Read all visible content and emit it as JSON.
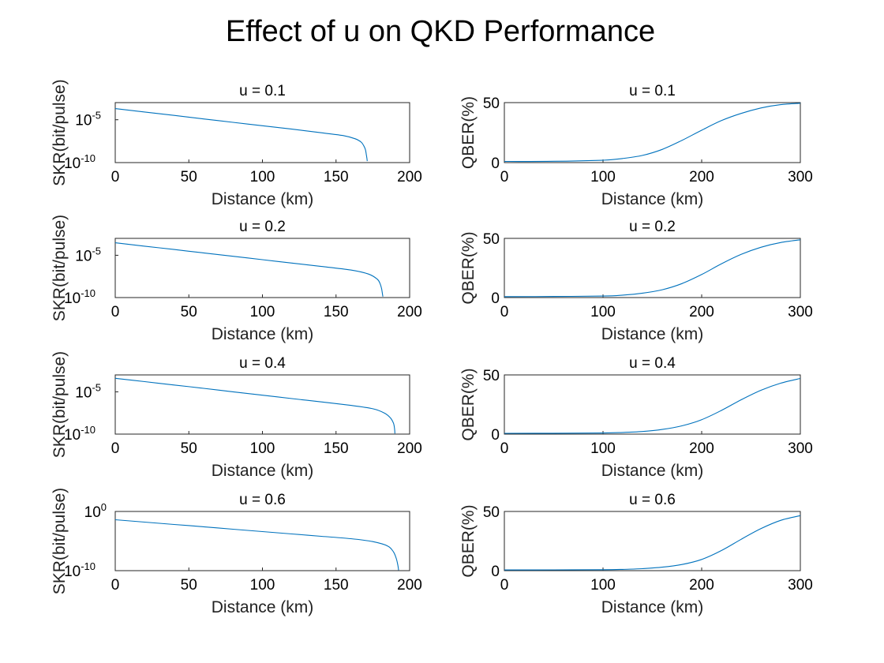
{
  "figure_title": "Effect of u on QKD Performance",
  "chart_data": [
    {
      "type": "line",
      "title": "u = 0.1",
      "xlabel": "Distance (km)",
      "ylabel": "SKR(bit/pulse)",
      "y_scale": "log",
      "xlim": [
        0,
        200
      ],
      "ylim": [
        1e-10,
        0.001
      ],
      "xticks": [
        {
          "v": 0,
          "t": "0"
        },
        {
          "v": 50,
          "t": "50"
        },
        {
          "v": 100,
          "t": "100"
        },
        {
          "v": 150,
          "t": "150"
        },
        {
          "v": 200,
          "t": "200"
        }
      ],
      "yticks": [
        {
          "v": 1e-10,
          "base": "10",
          "exp": "-10"
        },
        {
          "v": 1e-05,
          "base": "10",
          "exp": "-5"
        }
      ],
      "x": [
        0,
        20,
        40,
        60,
        80,
        100,
        120,
        140,
        155,
        163,
        167,
        169,
        170,
        170.5,
        171,
        171.2
      ],
      "y": [
        0.0002,
        8e-05,
        3.2e-05,
        1.25e-05,
        5e-06,
        2e-06,
        8e-07,
        3e-07,
        1.4e-07,
        6e-08,
        2.5e-08,
        8e-09,
        3e-09,
        1e-09,
        3e-10,
        1.5e-10
      ]
    },
    {
      "type": "line",
      "title": "u = 0.1",
      "xlabel": "Distance (km)",
      "ylabel": "QBER(%)",
      "xlim": [
        0,
        300
      ],
      "ylim": [
        0,
        50
      ],
      "xticks": [
        {
          "v": 0,
          "t": "0"
        },
        {
          "v": 100,
          "t": "100"
        },
        {
          "v": 200,
          "t": "200"
        },
        {
          "v": 300,
          "t": "300"
        }
      ],
      "yticks": [
        {
          "v": 0,
          "t": "0"
        },
        {
          "v": 50,
          "t": "50"
        }
      ],
      "x": [
        0,
        50,
        100,
        120,
        140,
        160,
        180,
        200,
        220,
        240,
        260,
        280,
        300
      ],
      "y": [
        1,
        1.1,
        2,
        3.4,
        6,
        11,
        18.5,
        27,
        35,
        41,
        45.5,
        48.3,
        49.5
      ]
    },
    {
      "type": "line",
      "title": "u = 0.2",
      "xlabel": "Distance (km)",
      "ylabel": "SKR(bit/pulse)",
      "y_scale": "log",
      "xlim": [
        0,
        200
      ],
      "ylim": [
        1e-10,
        0.001
      ],
      "xticks": [
        {
          "v": 0,
          "t": "0"
        },
        {
          "v": 50,
          "t": "50"
        },
        {
          "v": 100,
          "t": "100"
        },
        {
          "v": 150,
          "t": "150"
        },
        {
          "v": 200,
          "t": "200"
        }
      ],
      "yticks": [
        {
          "v": 1e-10,
          "base": "10",
          "exp": "-10"
        },
        {
          "v": 1e-05,
          "base": "10",
          "exp": "-5"
        }
      ],
      "x": [
        0,
        20,
        40,
        60,
        80,
        100,
        120,
        140,
        160,
        172,
        178,
        180,
        181,
        181.5,
        181.8
      ],
      "y": [
        0.0003,
        0.00012,
        4.8e-05,
        1.9e-05,
        7.6e-06,
        3e-06,
        1.2e-06,
        4.8e-07,
        1.8e-07,
        6e-08,
        1.5e-08,
        4e-09,
        1e-09,
        3e-10,
        1.3e-10
      ]
    },
    {
      "type": "line",
      "title": "u = 0.2",
      "xlabel": "Distance (km)",
      "ylabel": "QBER(%)",
      "xlim": [
        0,
        300
      ],
      "ylim": [
        0,
        50
      ],
      "xticks": [
        {
          "v": 0,
          "t": "0"
        },
        {
          "v": 100,
          "t": "100"
        },
        {
          "v": 200,
          "t": "200"
        },
        {
          "v": 300,
          "t": "300"
        }
      ],
      "yticks": [
        {
          "v": 0,
          "t": "0"
        },
        {
          "v": 50,
          "t": "50"
        }
      ],
      "x": [
        0,
        50,
        100,
        120,
        140,
        160,
        180,
        200,
        220,
        240,
        260,
        280,
        300
      ],
      "y": [
        0.8,
        0.9,
        1.3,
        2.1,
        3.7,
        6.6,
        11.8,
        19.5,
        28.5,
        36.5,
        42.5,
        46.5,
        48.8
      ]
    },
    {
      "type": "line",
      "title": "u = 0.4",
      "xlabel": "Distance (km)",
      "ylabel": "SKR(bit/pulse)",
      "y_scale": "log",
      "xlim": [
        0,
        200
      ],
      "ylim": [
        1e-10,
        0.001
      ],
      "xticks": [
        {
          "v": 0,
          "t": "0"
        },
        {
          "v": 50,
          "t": "50"
        },
        {
          "v": 100,
          "t": "100"
        },
        {
          "v": 150,
          "t": "150"
        },
        {
          "v": 200,
          "t": "200"
        }
      ],
      "yticks": [
        {
          "v": 1e-10,
          "base": "10",
          "exp": "-10"
        },
        {
          "v": 1e-05,
          "base": "10",
          "exp": "-5"
        }
      ],
      "x": [
        0,
        20,
        40,
        60,
        80,
        100,
        120,
        140,
        160,
        175,
        183,
        187,
        189,
        189.7,
        190
      ],
      "y": [
        0.0004,
        0.00016,
        6.4e-05,
        2.6e-05,
        1e-05,
        4e-06,
        1.6e-06,
        6.4e-07,
        2.5e-07,
        1e-07,
        3e-08,
        8e-09,
        2e-09,
        5e-10,
        1.2e-10
      ]
    },
    {
      "type": "line",
      "title": "u = 0.4",
      "xlabel": "Distance (km)",
      "ylabel": "QBER(%)",
      "xlim": [
        0,
        300
      ],
      "ylim": [
        0,
        50
      ],
      "xticks": [
        {
          "v": 0,
          "t": "0"
        },
        {
          "v": 100,
          "t": "100"
        },
        {
          "v": 200,
          "t": "200"
        },
        {
          "v": 300,
          "t": "300"
        }
      ],
      "yticks": [
        {
          "v": 0,
          "t": "0"
        },
        {
          "v": 50,
          "t": "50"
        }
      ],
      "x": [
        0,
        50,
        100,
        120,
        140,
        160,
        180,
        200,
        220,
        240,
        260,
        280,
        300
      ],
      "y": [
        0.7,
        0.75,
        0.95,
        1.4,
        2.2,
        3.9,
        7,
        12.2,
        20,
        29,
        37,
        43,
        47
      ]
    },
    {
      "type": "line",
      "title": "u = 0.6",
      "xlabel": "Distance (km)",
      "ylabel": "SKR(bit/pulse)",
      "y_scale": "log",
      "xlim": [
        0,
        200
      ],
      "ylim": [
        1e-10,
        1
      ],
      "xticks": [
        {
          "v": 0,
          "t": "0"
        },
        {
          "v": 50,
          "t": "50"
        },
        {
          "v": 100,
          "t": "100"
        },
        {
          "v": 150,
          "t": "150"
        },
        {
          "v": 200,
          "t": "200"
        }
      ],
      "yticks": [
        {
          "v": 1e-10,
          "base": "10",
          "exp": "-10"
        },
        {
          "v": 1,
          "base": "10",
          "exp": "0"
        }
      ],
      "x": [
        0,
        20,
        40,
        60,
        80,
        100,
        120,
        140,
        160,
        175,
        185,
        189,
        191,
        192,
        192.5
      ],
      "y": [
        0.04,
        0.016,
        0.0064,
        0.0026,
        0.001,
        0.0004,
        0.00016,
        6.4e-05,
        2.5e-05,
        8e-06,
        1.5e-06,
        1.5e-07,
        1e-08,
        8e-10,
        1.2e-10
      ]
    },
    {
      "type": "line",
      "title": "u = 0.6",
      "xlabel": "Distance (km)",
      "ylabel": "QBER(%)",
      "xlim": [
        0,
        300
      ],
      "ylim": [
        0,
        50
      ],
      "xticks": [
        {
          "v": 0,
          "t": "0"
        },
        {
          "v": 100,
          "t": "100"
        },
        {
          "v": 200,
          "t": "200"
        },
        {
          "v": 300,
          "t": "300"
        }
      ],
      "yticks": [
        {
          "v": 0,
          "t": "0"
        },
        {
          "v": 50,
          "t": "50"
        }
      ],
      "x": [
        0,
        50,
        100,
        120,
        140,
        160,
        180,
        200,
        220,
        240,
        260,
        280,
        300
      ],
      "y": [
        0.6,
        0.65,
        0.8,
        1.1,
        1.7,
        2.9,
        5.2,
        9.5,
        17,
        26.5,
        35.5,
        42.5,
        46.5
      ]
    }
  ]
}
